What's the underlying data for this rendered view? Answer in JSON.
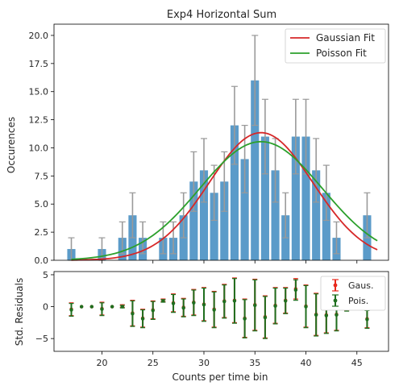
{
  "chart_data": [
    {
      "type": "bar",
      "title": "Exp4 Horizontal Sum",
      "xlabel": "",
      "ylabel": "Occurences",
      "xlim": [
        15.3,
        48.1
      ],
      "ylim": [
        0,
        21
      ],
      "yticks": [
        0.0,
        2.5,
        5.0,
        7.5,
        10.0,
        12.5,
        15.0,
        17.5,
        20.0
      ],
      "yticklabels": [
        "0.0",
        "2.5",
        "5.0",
        "7.5",
        "10.0",
        "12.5",
        "15.0",
        "17.5",
        "20.0"
      ],
      "grid": false,
      "legend": {
        "placement": "top-right",
        "entries": [
          "Gaussian Fit",
          "Poisson Fit"
        ]
      },
      "bar_color": "#5b9bc9",
      "errorbar_color": "#9a9a9a",
      "bars": [
        {
          "x": 17,
          "y": 1
        },
        {
          "x": 20,
          "y": 1
        },
        {
          "x": 22,
          "y": 2
        },
        {
          "x": 23,
          "y": 4
        },
        {
          "x": 24,
          "y": 2
        },
        {
          "x": 26,
          "y": 2
        },
        {
          "x": 27,
          "y": 2
        },
        {
          "x": 28,
          "y": 4
        },
        {
          "x": 29,
          "y": 7
        },
        {
          "x": 30,
          "y": 8
        },
        {
          "x": 31,
          "y": 6
        },
        {
          "x": 32,
          "y": 7
        },
        {
          "x": 33,
          "y": 12
        },
        {
          "x": 34,
          "y": 9
        },
        {
          "x": 35,
          "y": 16
        },
        {
          "x": 36,
          "y": 11
        },
        {
          "x": 37,
          "y": 8
        },
        {
          "x": 38,
          "y": 4
        },
        {
          "x": 39,
          "y": 11
        },
        {
          "x": 40,
          "y": 11
        },
        {
          "x": 41,
          "y": 8
        },
        {
          "x": 42,
          "y": 6
        },
        {
          "x": 43,
          "y": 2
        },
        {
          "x": 46,
          "y": 4
        }
      ],
      "series": [
        {
          "name": "Gaussian Fit",
          "type": "line",
          "color": "#d62728",
          "mean": 35.6,
          "sigma": 5.1,
          "peak": 11.35
        },
        {
          "name": "Poisson Fit",
          "type": "line",
          "color": "#2ca02c",
          "mean": 35.6,
          "sigma": 6.0,
          "peak": 10.55
        }
      ]
    },
    {
      "type": "scatter",
      "title": "",
      "xlabel": "Counts per time bin",
      "ylabel": "Std. Residuals",
      "xlim": [
        15.3,
        48.1
      ],
      "ylim": [
        -7,
        5.5
      ],
      "xticks": [
        20,
        25,
        30,
        35,
        40,
        45
      ],
      "xticklabels": [
        "20",
        "25",
        "30",
        "35",
        "40",
        "45"
      ],
      "yticks": [
        -5,
        0,
        5
      ],
      "yticklabels": [
        "−5",
        "0",
        "5"
      ],
      "grid": false,
      "legend": {
        "placement": "top-right",
        "entries": [
          "Gaus.",
          "Pois."
        ]
      },
      "series": [
        {
          "name": "Gaus.",
          "color": "#e8291c",
          "points": [
            {
              "x": 17,
              "y": -0.4,
              "err": 1
            },
            {
              "x": 18,
              "y": 0,
              "err": 0
            },
            {
              "x": 19,
              "y": 0,
              "err": 0
            },
            {
              "x": 20,
              "y": -0.3,
              "err": 1
            },
            {
              "x": 21,
              "y": 0,
              "err": 0
            },
            {
              "x": 22,
              "y": 0.1,
              "err": 0.2
            },
            {
              "x": 23,
              "y": -1.0,
              "err": 2.0
            },
            {
              "x": 24,
              "y": -1.8,
              "err": 1.4
            },
            {
              "x": 25,
              "y": -0.5,
              "err": 1.4
            },
            {
              "x": 26,
              "y": 1.0,
              "err": 0.2
            },
            {
              "x": 27,
              "y": 0.6,
              "err": 1.4
            },
            {
              "x": 28,
              "y": -0.1,
              "err": 1.4
            },
            {
              "x": 29,
              "y": 0.7,
              "err": 2.0
            },
            {
              "x": 30,
              "y": 0.4,
              "err": 2.6
            },
            {
              "x": 31,
              "y": -0.4,
              "err": 2.8
            },
            {
              "x": 32,
              "y": 0.9,
              "err": 2.6
            },
            {
              "x": 33,
              "y": 1.0,
              "err": 3.5
            },
            {
              "x": 34,
              "y": -1.8,
              "err": 3.0
            },
            {
              "x": 35,
              "y": 0.3,
              "err": 4.0
            },
            {
              "x": 36,
              "y": -1.6,
              "err": 3.3
            },
            {
              "x": 37,
              "y": 0.2,
              "err": 2.8
            },
            {
              "x": 38,
              "y": 1.0,
              "err": 2.0
            },
            {
              "x": 39,
              "y": 2.8,
              "err": 1.6
            },
            {
              "x": 40,
              "y": 0.1,
              "err": 3.3
            },
            {
              "x": 41,
              "y": -1.2,
              "err": 3.3
            },
            {
              "x": 42,
              "y": -1.3,
              "err": 2.8
            },
            {
              "x": 43,
              "y": -1.2,
              "err": 2.5
            },
            {
              "x": 44,
              "y": 0.8,
              "err": 1.4
            },
            {
              "x": 45,
              "y": 1.8,
              "err": 0.4
            },
            {
              "x": 46,
              "y": -1.9,
              "err": 1.4
            }
          ]
        },
        {
          "name": "Pois.",
          "color": "#1f6f1f",
          "points": [
            {
              "x": 17,
              "y": -0.5,
              "err": 1
            },
            {
              "x": 18,
              "y": 0,
              "err": 0
            },
            {
              "x": 19,
              "y": 0,
              "err": 0
            },
            {
              "x": 20,
              "y": -0.4,
              "err": 1
            },
            {
              "x": 21,
              "y": 0,
              "err": 0
            },
            {
              "x": 22,
              "y": 0,
              "err": 0.2
            },
            {
              "x": 23,
              "y": -1.1,
              "err": 2.0
            },
            {
              "x": 24,
              "y": -1.9,
              "err": 1.4
            },
            {
              "x": 25,
              "y": -0.6,
              "err": 1.4
            },
            {
              "x": 26,
              "y": 0.9,
              "err": 0.2
            },
            {
              "x": 27,
              "y": 0.5,
              "err": 1.4
            },
            {
              "x": 28,
              "y": -0.2,
              "err": 1.4
            },
            {
              "x": 29,
              "y": 0.6,
              "err": 2.0
            },
            {
              "x": 30,
              "y": 0.3,
              "err": 2.6
            },
            {
              "x": 31,
              "y": -0.5,
              "err": 2.8
            },
            {
              "x": 32,
              "y": 0.8,
              "err": 2.6
            },
            {
              "x": 33,
              "y": 0.9,
              "err": 3.5
            },
            {
              "x": 34,
              "y": -1.9,
              "err": 3.0
            },
            {
              "x": 35,
              "y": 0.2,
              "err": 4.0
            },
            {
              "x": 36,
              "y": -1.7,
              "err": 3.3
            },
            {
              "x": 37,
              "y": 0.1,
              "err": 2.8
            },
            {
              "x": 38,
              "y": 0.9,
              "err": 2.0
            },
            {
              "x": 39,
              "y": 2.6,
              "err": 1.6
            },
            {
              "x": 40,
              "y": 0,
              "err": 3.3
            },
            {
              "x": 41,
              "y": -1.3,
              "err": 3.3
            },
            {
              "x": 42,
              "y": -1.4,
              "err": 2.8
            },
            {
              "x": 43,
              "y": -1.3,
              "err": 2.5
            },
            {
              "x": 44,
              "y": 0.7,
              "err": 1.4
            },
            {
              "x": 45,
              "y": 1.6,
              "err": 0.4
            },
            {
              "x": 46,
              "y": -2.0,
              "err": 1.4
            }
          ]
        }
      ]
    }
  ]
}
